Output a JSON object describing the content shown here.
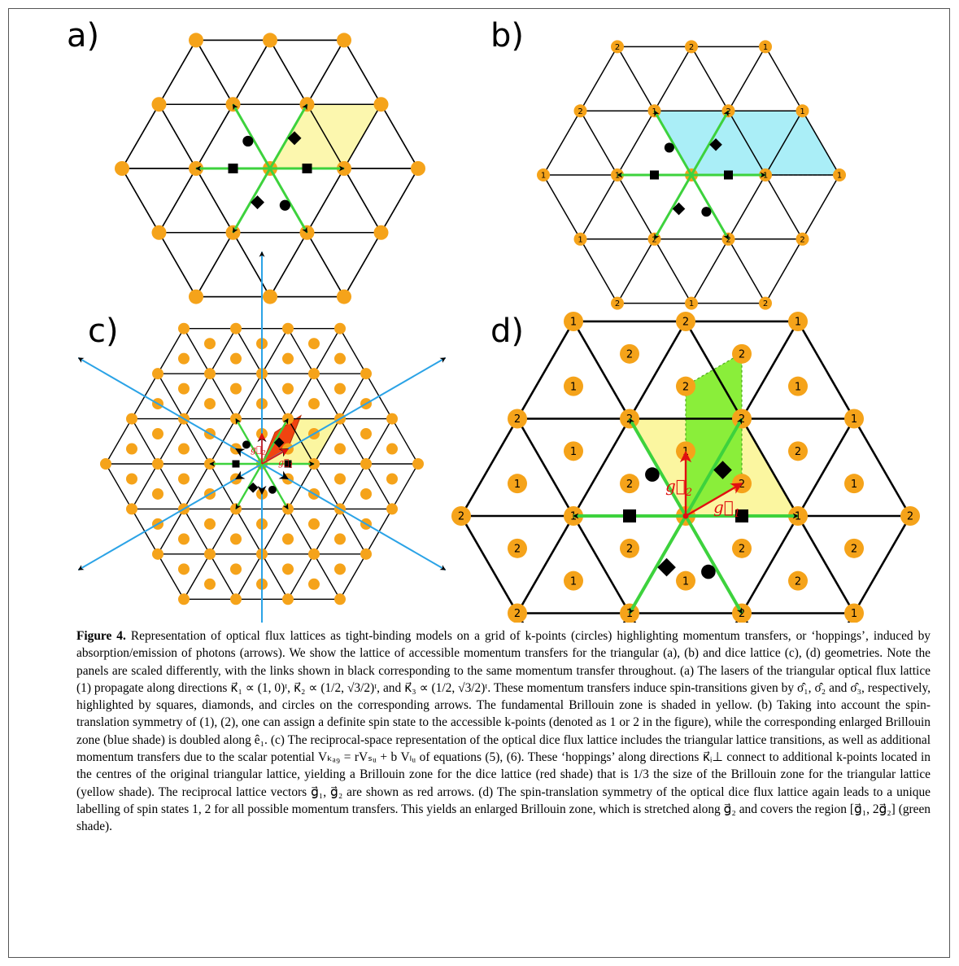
{
  "figure": {
    "panels": [
      {
        "label": "a)"
      },
      {
        "label": "b)"
      },
      {
        "label": "c)"
      },
      {
        "label": "d)"
      }
    ],
    "panel_b": {
      "outer_hex_numbers": [
        "2",
        "1",
        "2",
        "1",
        "2",
        "1",
        "1",
        "2",
        "1",
        "2",
        "2",
        "1"
      ],
      "inner_numbers": [
        "2",
        "2",
        "1",
        "1",
        "1",
        "2"
      ]
    },
    "panel_d": {
      "vertex_numbers": [
        "1",
        "2",
        "1",
        "2",
        "1",
        "2",
        "1",
        "1",
        "2",
        "2",
        "2",
        "2",
        "1"
      ],
      "center_numbers": [
        "2",
        "2",
        "1",
        "2",
        "1",
        "1",
        "2",
        "1",
        "1",
        "2",
        "2",
        "2"
      ],
      "vec_g1": "g⃗",
      "vec_g1_sub": "1",
      "vec_g2": "g⃗",
      "vec_g2_sub": "2"
    },
    "panel_c": {
      "vec_g1": "g⃗",
      "vec_g1_sub": "1",
      "vec_g2": "g⃗",
      "vec_g2_sub": "2"
    },
    "colors": {
      "node": "#f5a31a",
      "link": "#000000",
      "arrow_green": "#3dd23d",
      "bz_yellow": "#fbf6a0",
      "bz_blue": "#aaeef7",
      "bz_green": "#8aee3a",
      "bz_red": "#f04410",
      "hop_blue": "#2ba3e6",
      "vec_red": "#e01010"
    }
  },
  "caption": {
    "title": "Figure 4.",
    "body": " Representation of optical flux lattices as tight-binding models on a grid of k-points (circles) highlighting momentum transfers, or ‘hoppings’, induced by absorption/emission of photons (arrows). We show the lattice of accessible momentum transfers for the triangular (a), (b) and dice lattice (c), (d) geometries. Note the panels are scaled differently, with the links shown in black corresponding to the same momentum transfer throughout. (a) The lasers of the triangular optical flux lattice (1) propagate along directions κ⃗₁ ∝ (1, 0)ᵗ, κ⃗₂ ∝ (1/2, √3/2)ᵗ, and κ⃗₃ ∝ (1/2, √3/2)ᵗ. These momentum transfers induce spin-transitions given by σ̂₁, σ̂₂ and σ̂₃, respectively, highlighted by squares, diamonds, and circles on the corresponding arrows. The fundamental Brillouin zone is shaded in yellow. (b) Taking into account the spin-translation symmetry of (1), (2), one can assign a definite spin state to the accessible k-points (denoted as 1 or 2 in the figure), while the corresponding enlarged Brillouin zone (blue shade) is doubled along ê₁. (c) The reciprocal-space representation of the optical dice flux lattice includes the triangular lattice transitions, as well as additional momentum transfers due to the scalar potential Vₖₐ₉ = rVₛᵤ + b Vₗᵤ of equations (5), (6). These ‘hoppings’ along directions κ⃗ᵢ⊥ connect to additional k-points located in the centres of the original triangular lattice, yielding a Brillouin zone for the dice lattice (red shade) that is 1/3 the size of the Brillouin zone for the triangular lattice (yellow shade). The reciprocal lattice vectors g⃗₁, g⃗₂ are shown as red arrows. (d) The spin-translation symmetry of the optical dice flux lattice again leads to a unique labelling of spin states 1, 2 for all possible momentum transfers. This yields an enlarged Brillouin zone, which is stretched along g⃗₂ and covers the region [g⃗₁, 2g⃗₂] (green shade)."
  }
}
